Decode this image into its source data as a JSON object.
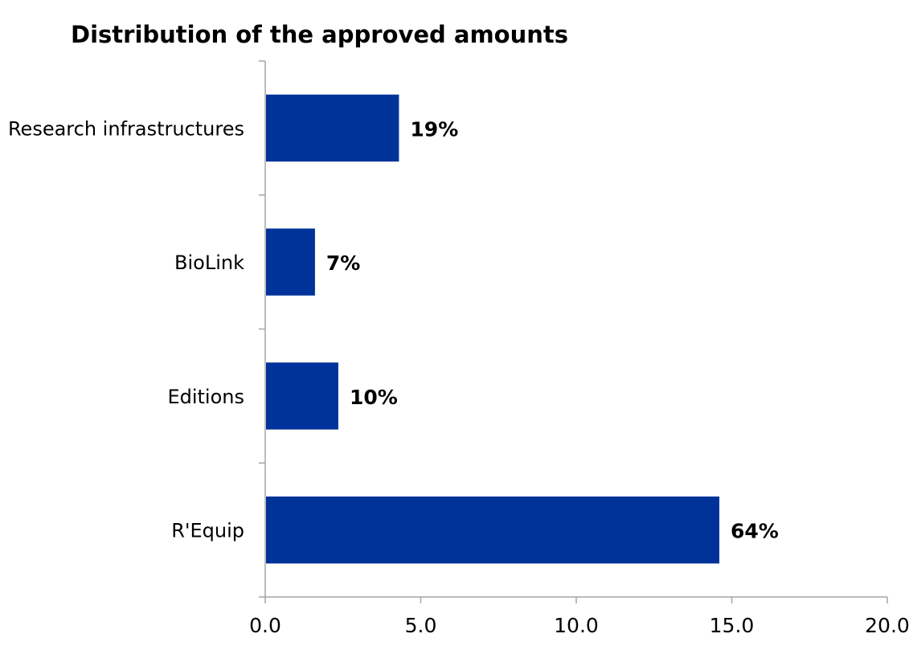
{
  "chart_data": {
    "type": "bar",
    "orientation": "horizontal",
    "title": "Distribution of the approved amounts",
    "categories": [
      "Research infrastructures",
      "BioLink",
      "Editions",
      "R'Equip"
    ],
    "values": [
      4.3,
      1.6,
      2.35,
      14.6
    ],
    "data_labels": [
      "19%",
      "7%",
      "10%",
      "64%"
    ],
    "x_ticks": [
      "0.0",
      "5.0",
      "10.0",
      "15.0",
      "20.0"
    ],
    "xlim": [
      0,
      20
    ],
    "xlabel": "",
    "ylabel": "",
    "grid": false,
    "legend": "none",
    "bar_color": "#003399"
  }
}
